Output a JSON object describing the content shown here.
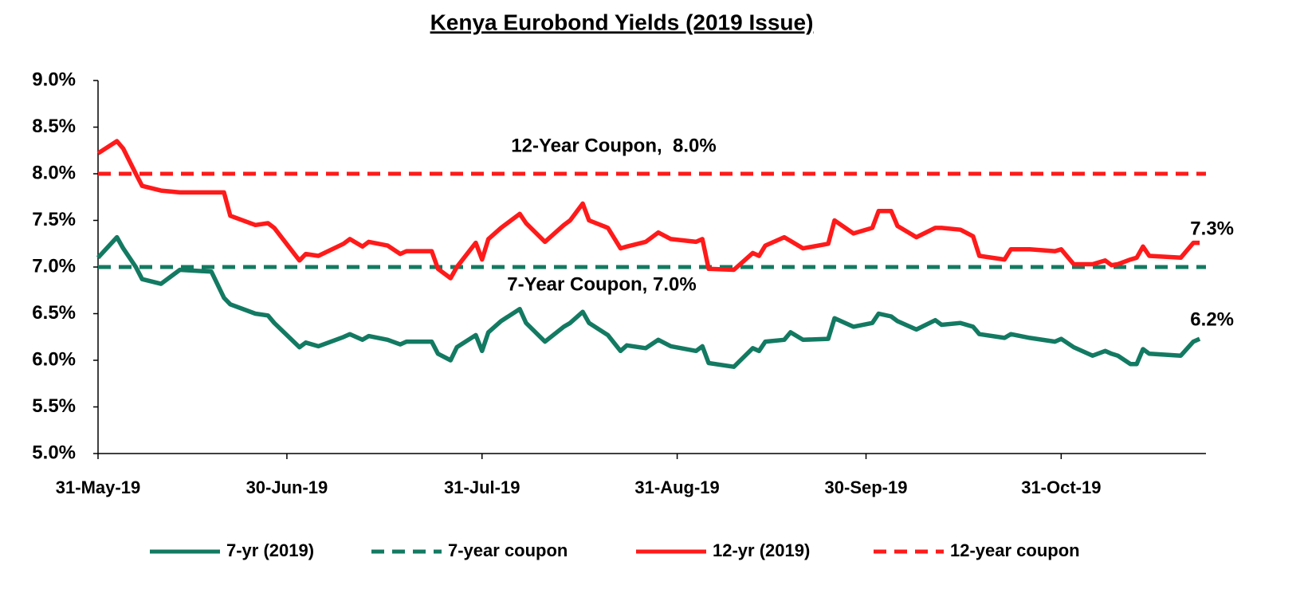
{
  "chart_data": {
    "type": "line",
    "title": "Kenya Eurobond Yields (2019 Issue)",
    "x": [
      "2019-05-31",
      "2019-06-03",
      "2019-06-04",
      "2019-06-06",
      "2019-06-07",
      "2019-06-10",
      "2019-06-13",
      "2019-06-18",
      "2019-06-20",
      "2019-06-21",
      "2019-06-25",
      "2019-06-27",
      "2019-06-28",
      "2019-07-02",
      "2019-07-03",
      "2019-07-05",
      "2019-07-09",
      "2019-07-10",
      "2019-07-12",
      "2019-07-13",
      "2019-07-16",
      "2019-07-18",
      "2019-07-19",
      "2019-07-23",
      "2019-07-24",
      "2019-07-26",
      "2019-07-27",
      "2019-07-30",
      "2019-07-31",
      "2019-08-01",
      "2019-08-03",
      "2019-08-06",
      "2019-08-07",
      "2019-08-10",
      "2019-08-13",
      "2019-08-14",
      "2019-08-16",
      "2019-08-17",
      "2019-08-20",
      "2019-08-22",
      "2019-08-23",
      "2019-08-26",
      "2019-08-28",
      "2019-08-30",
      "2019-09-03",
      "2019-09-04",
      "2019-09-05",
      "2019-09-09",
      "2019-09-12",
      "2019-09-13",
      "2019-09-14",
      "2019-09-17",
      "2019-09-18",
      "2019-09-20",
      "2019-09-24",
      "2019-09-25",
      "2019-09-28",
      "2019-10-01",
      "2019-10-02",
      "2019-10-04",
      "2019-10-05",
      "2019-10-08",
      "2019-10-11",
      "2019-10-12",
      "2019-10-15",
      "2019-10-17",
      "2019-10-18",
      "2019-10-22",
      "2019-10-23",
      "2019-10-26",
      "2019-10-30",
      "2019-10-31",
      "2019-11-02",
      "2019-11-05",
      "2019-11-07",
      "2019-11-08",
      "2019-11-09",
      "2019-11-11",
      "2019-11-12",
      "2019-11-13",
      "2019-11-14",
      "2019-11-19",
      "2019-11-21",
      "2019-11-22"
    ],
    "series": [
      {
        "name": "7-yr (2019)",
        "color": "#137a62",
        "dash": false,
        "values": [
          7.1,
          7.32,
          7.2,
          7.0,
          6.87,
          6.82,
          6.97,
          6.95,
          6.67,
          6.6,
          6.5,
          6.48,
          6.4,
          6.14,
          6.19,
          6.15,
          6.25,
          6.28,
          6.22,
          6.26,
          6.22,
          6.17,
          6.2,
          6.2,
          6.07,
          6.0,
          6.14,
          6.27,
          6.1,
          6.3,
          6.42,
          6.55,
          6.4,
          6.2,
          6.36,
          6.4,
          6.52,
          6.4,
          6.27,
          6.1,
          6.16,
          6.13,
          6.22,
          6.15,
          6.1,
          6.15,
          5.97,
          5.93,
          6.13,
          6.1,
          6.2,
          6.22,
          6.3,
          6.22,
          6.23,
          6.45,
          6.36,
          6.4,
          6.5,
          6.47,
          6.42,
          6.33,
          6.43,
          6.38,
          6.4,
          6.36,
          6.28,
          6.24,
          6.28,
          6.24,
          6.2,
          6.23,
          6.14,
          6.05,
          6.1,
          6.07,
          6.05,
          5.96,
          5.96,
          6.12,
          6.07,
          6.05,
          6.2,
          6.23
        ]
      },
      {
        "name": "7-year coupon",
        "color": "#137a62",
        "dash": true,
        "x": [
          "2019-05-31",
          "2019-11-23"
        ],
        "values": [
          7,
          7
        ]
      },
      {
        "name": "12-yr (2019)",
        "color": "#ff1a1a",
        "dash": false,
        "values": [
          8.22,
          8.35,
          8.27,
          8.0,
          7.87,
          7.82,
          7.8,
          7.8,
          7.8,
          7.55,
          7.45,
          7.47,
          7.42,
          7.07,
          7.14,
          7.12,
          7.25,
          7.3,
          7.22,
          7.27,
          7.23,
          7.14,
          7.17,
          7.17,
          6.98,
          6.88,
          7.0,
          7.26,
          7.08,
          7.3,
          7.42,
          7.57,
          7.47,
          7.27,
          7.45,
          7.5,
          7.68,
          7.5,
          7.42,
          7.2,
          7.22,
          7.27,
          7.37,
          7.3,
          7.27,
          7.3,
          6.98,
          6.97,
          7.15,
          7.12,
          7.23,
          7.32,
          7.28,
          7.2,
          7.25,
          7.5,
          7.36,
          7.42,
          7.6,
          7.6,
          7.44,
          7.32,
          7.42,
          7.42,
          7.4,
          7.33,
          7.12,
          7.08,
          7.19,
          7.19,
          7.17,
          7.19,
          7.03,
          7.03,
          7.07,
          7.02,
          7.03,
          7.08,
          7.1,
          7.22,
          7.12,
          7.1,
          7.26,
          7.26
        ]
      },
      {
        "name": "12-year coupon",
        "color": "#ff1a1a",
        "dash": true,
        "x": [
          "2019-05-31",
          "2019-11-23"
        ],
        "values": [
          8,
          8
        ]
      }
    ],
    "xlim": [
      "2019-05-31",
      "2019-11-23"
    ],
    "xticks": [
      {
        "value": "2019-05-31",
        "label": "31-May-19"
      },
      {
        "value": "2019-06-30",
        "label": "30-Jun-19"
      },
      {
        "value": "2019-07-31",
        "label": "31-Jul-19"
      },
      {
        "value": "2019-08-31",
        "label": "31-Aug-19"
      },
      {
        "value": "2019-09-30",
        "label": "30-Sep-19"
      },
      {
        "value": "2019-10-31",
        "label": "31-Oct-19"
      }
    ],
    "ylim": [
      5,
      9
    ],
    "yticks": [
      {
        "value": 5,
        "label": "5.0%"
      },
      {
        "value": 5.5,
        "label": "5.5%"
      },
      {
        "value": 6,
        "label": "6.0%"
      },
      {
        "value": 6.5,
        "label": "6.5%"
      },
      {
        "value": 7,
        "label": "7.0%"
      },
      {
        "value": 7.5,
        "label": "7.5%"
      },
      {
        "value": 8,
        "label": "8.0%"
      },
      {
        "value": 8.5,
        "label": "8.5%"
      },
      {
        "value": 9,
        "label": "9.0%"
      }
    ],
    "annotations": [
      "12-Year Coupon,  8.0%",
      "7-Year Coupon, 7.0%",
      "7.3%",
      "6.2%"
    ],
    "legend": "bottom"
  }
}
